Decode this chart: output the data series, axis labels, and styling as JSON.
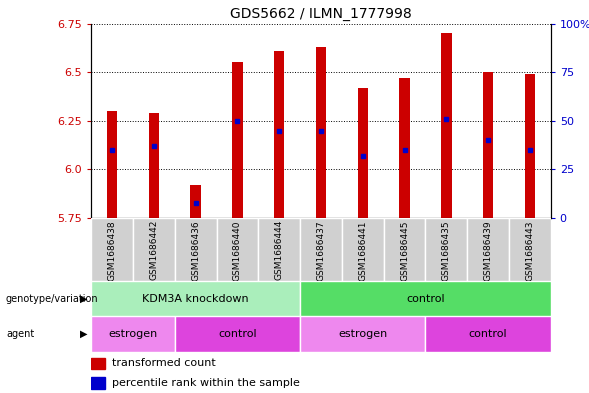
{
  "title": "GDS5662 / ILMN_1777998",
  "samples": [
    "GSM1686438",
    "GSM1686442",
    "GSM1686436",
    "GSM1686440",
    "GSM1686444",
    "GSM1686437",
    "GSM1686441",
    "GSM1686445",
    "GSM1686435",
    "GSM1686439",
    "GSM1686443"
  ],
  "transformed_counts": [
    6.3,
    6.29,
    5.92,
    6.55,
    6.61,
    6.63,
    6.42,
    6.47,
    6.7,
    6.5,
    6.49
  ],
  "percentile_ranks": [
    6.1,
    6.12,
    5.83,
    6.25,
    6.2,
    6.2,
    6.07,
    6.1,
    6.26,
    6.15,
    6.1
  ],
  "y_min": 5.75,
  "y_max": 6.75,
  "y_ticks_left": [
    5.75,
    6.0,
    6.25,
    6.5,
    6.75
  ],
  "y_ticks_right": [
    0,
    25,
    50,
    75,
    100
  ],
  "bar_color": "#cc0000",
  "percentile_color": "#0000cc",
  "bar_width": 0.25,
  "genotype_groups": [
    {
      "label": "KDM3A knockdown",
      "start": 0,
      "end": 5,
      "color": "#aaeebb"
    },
    {
      "label": "control",
      "start": 5,
      "end": 11,
      "color": "#55dd66"
    }
  ],
  "agent_groups": [
    {
      "label": "estrogen",
      "start": 0,
      "end": 2,
      "color": "#ee88ee"
    },
    {
      "label": "control",
      "start": 2,
      "end": 5,
      "color": "#dd44dd"
    },
    {
      "label": "estrogen",
      "start": 5,
      "end": 8,
      "color": "#ee88ee"
    },
    {
      "label": "control",
      "start": 8,
      "end": 11,
      "color": "#dd44dd"
    }
  ],
  "background_color": "#ffffff",
  "plot_bg_color": "#ffffff",
  "grid_color": "#000000",
  "tick_color_left": "#cc0000",
  "tick_color_right": "#0000cc",
  "label_box_color": "#d0d0d0",
  "title_fontsize": 10,
  "tick_fontsize": 8,
  "sample_fontsize": 6.5,
  "row_fontsize": 8,
  "legend_fontsize": 8
}
